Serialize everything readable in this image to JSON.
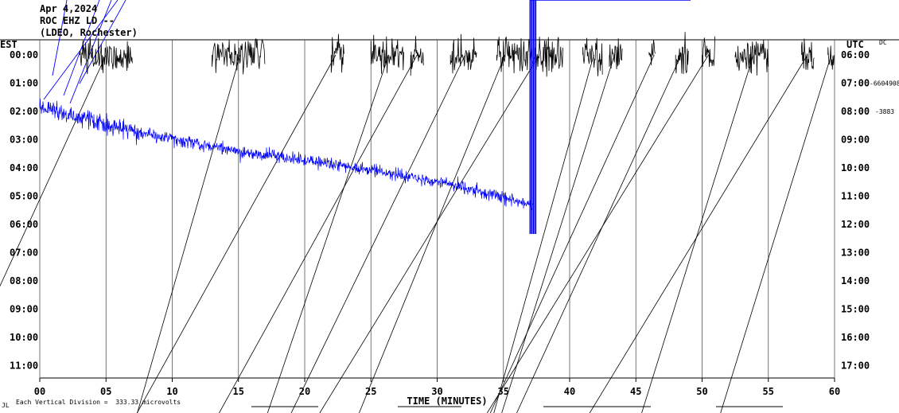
{
  "header": {
    "line1": "Apr 4,2024",
    "line2": "ROC EHZ LD --",
    "line3": "(LDEO, Rochester)"
  },
  "footer": {
    "mark": "JL",
    "scale_note": "Each Vertical Division =  333.33 microvolts"
  },
  "colors": {
    "trace_a": "#000000",
    "trace_b": "#0000ff",
    "grid": "#000000"
  },
  "chart_data": {
    "type": "line",
    "title": "",
    "xlabel": "TIME (MINUTES)",
    "left_axis_label": "EST",
    "right_axis_label": "UTC",
    "dc_label": "DC",
    "right_values": [
      "-6604908",
      "-3883"
    ],
    "x_ticks": [
      "00",
      "05",
      "10",
      "15",
      "20",
      "25",
      "30",
      "35",
      "40",
      "45",
      "50",
      "55",
      "60"
    ],
    "xlim": [
      0,
      60
    ],
    "est_rows": [
      "00:00",
      "01:00",
      "02:00",
      "03:00",
      "04:00",
      "05:00",
      "06:00",
      "07:00",
      "08:00",
      "09:00",
      "10:00",
      "11:00"
    ],
    "utc_rows": [
      "06:00",
      "07:00",
      "08:00",
      "09:00",
      "10:00",
      "11:00",
      "12:00",
      "13:00",
      "14:00",
      "15:00",
      "16:00",
      "17:00"
    ],
    "grid": true,
    "series": [
      {
        "color": "black",
        "row": "00:00",
        "bursts_minutes": [
          [
            3.0,
            7.0
          ],
          [
            13.0,
            17.0
          ],
          [
            22.0,
            23.0
          ],
          [
            25.0,
            27.5
          ],
          [
            28.0,
            29.0
          ],
          [
            31.0,
            33.0
          ],
          [
            34.5,
            36.0
          ],
          [
            36.0,
            39.5
          ],
          [
            41.0,
            42.5
          ],
          [
            43.0,
            44.0
          ],
          [
            46.0,
            46.5
          ],
          [
            48.0,
            49.0
          ],
          [
            50.0,
            51.0
          ],
          [
            52.5,
            55.0
          ],
          [
            57.5,
            58.5
          ],
          [
            59.5,
            60.0
          ]
        ]
      },
      {
        "color": "blue",
        "start_row": "02:00",
        "end_row": "05:30",
        "end_minute": 37.3,
        "bursts_minutes": [
          [
            37.0,
            37.5
          ]
        ]
      }
    ]
  }
}
